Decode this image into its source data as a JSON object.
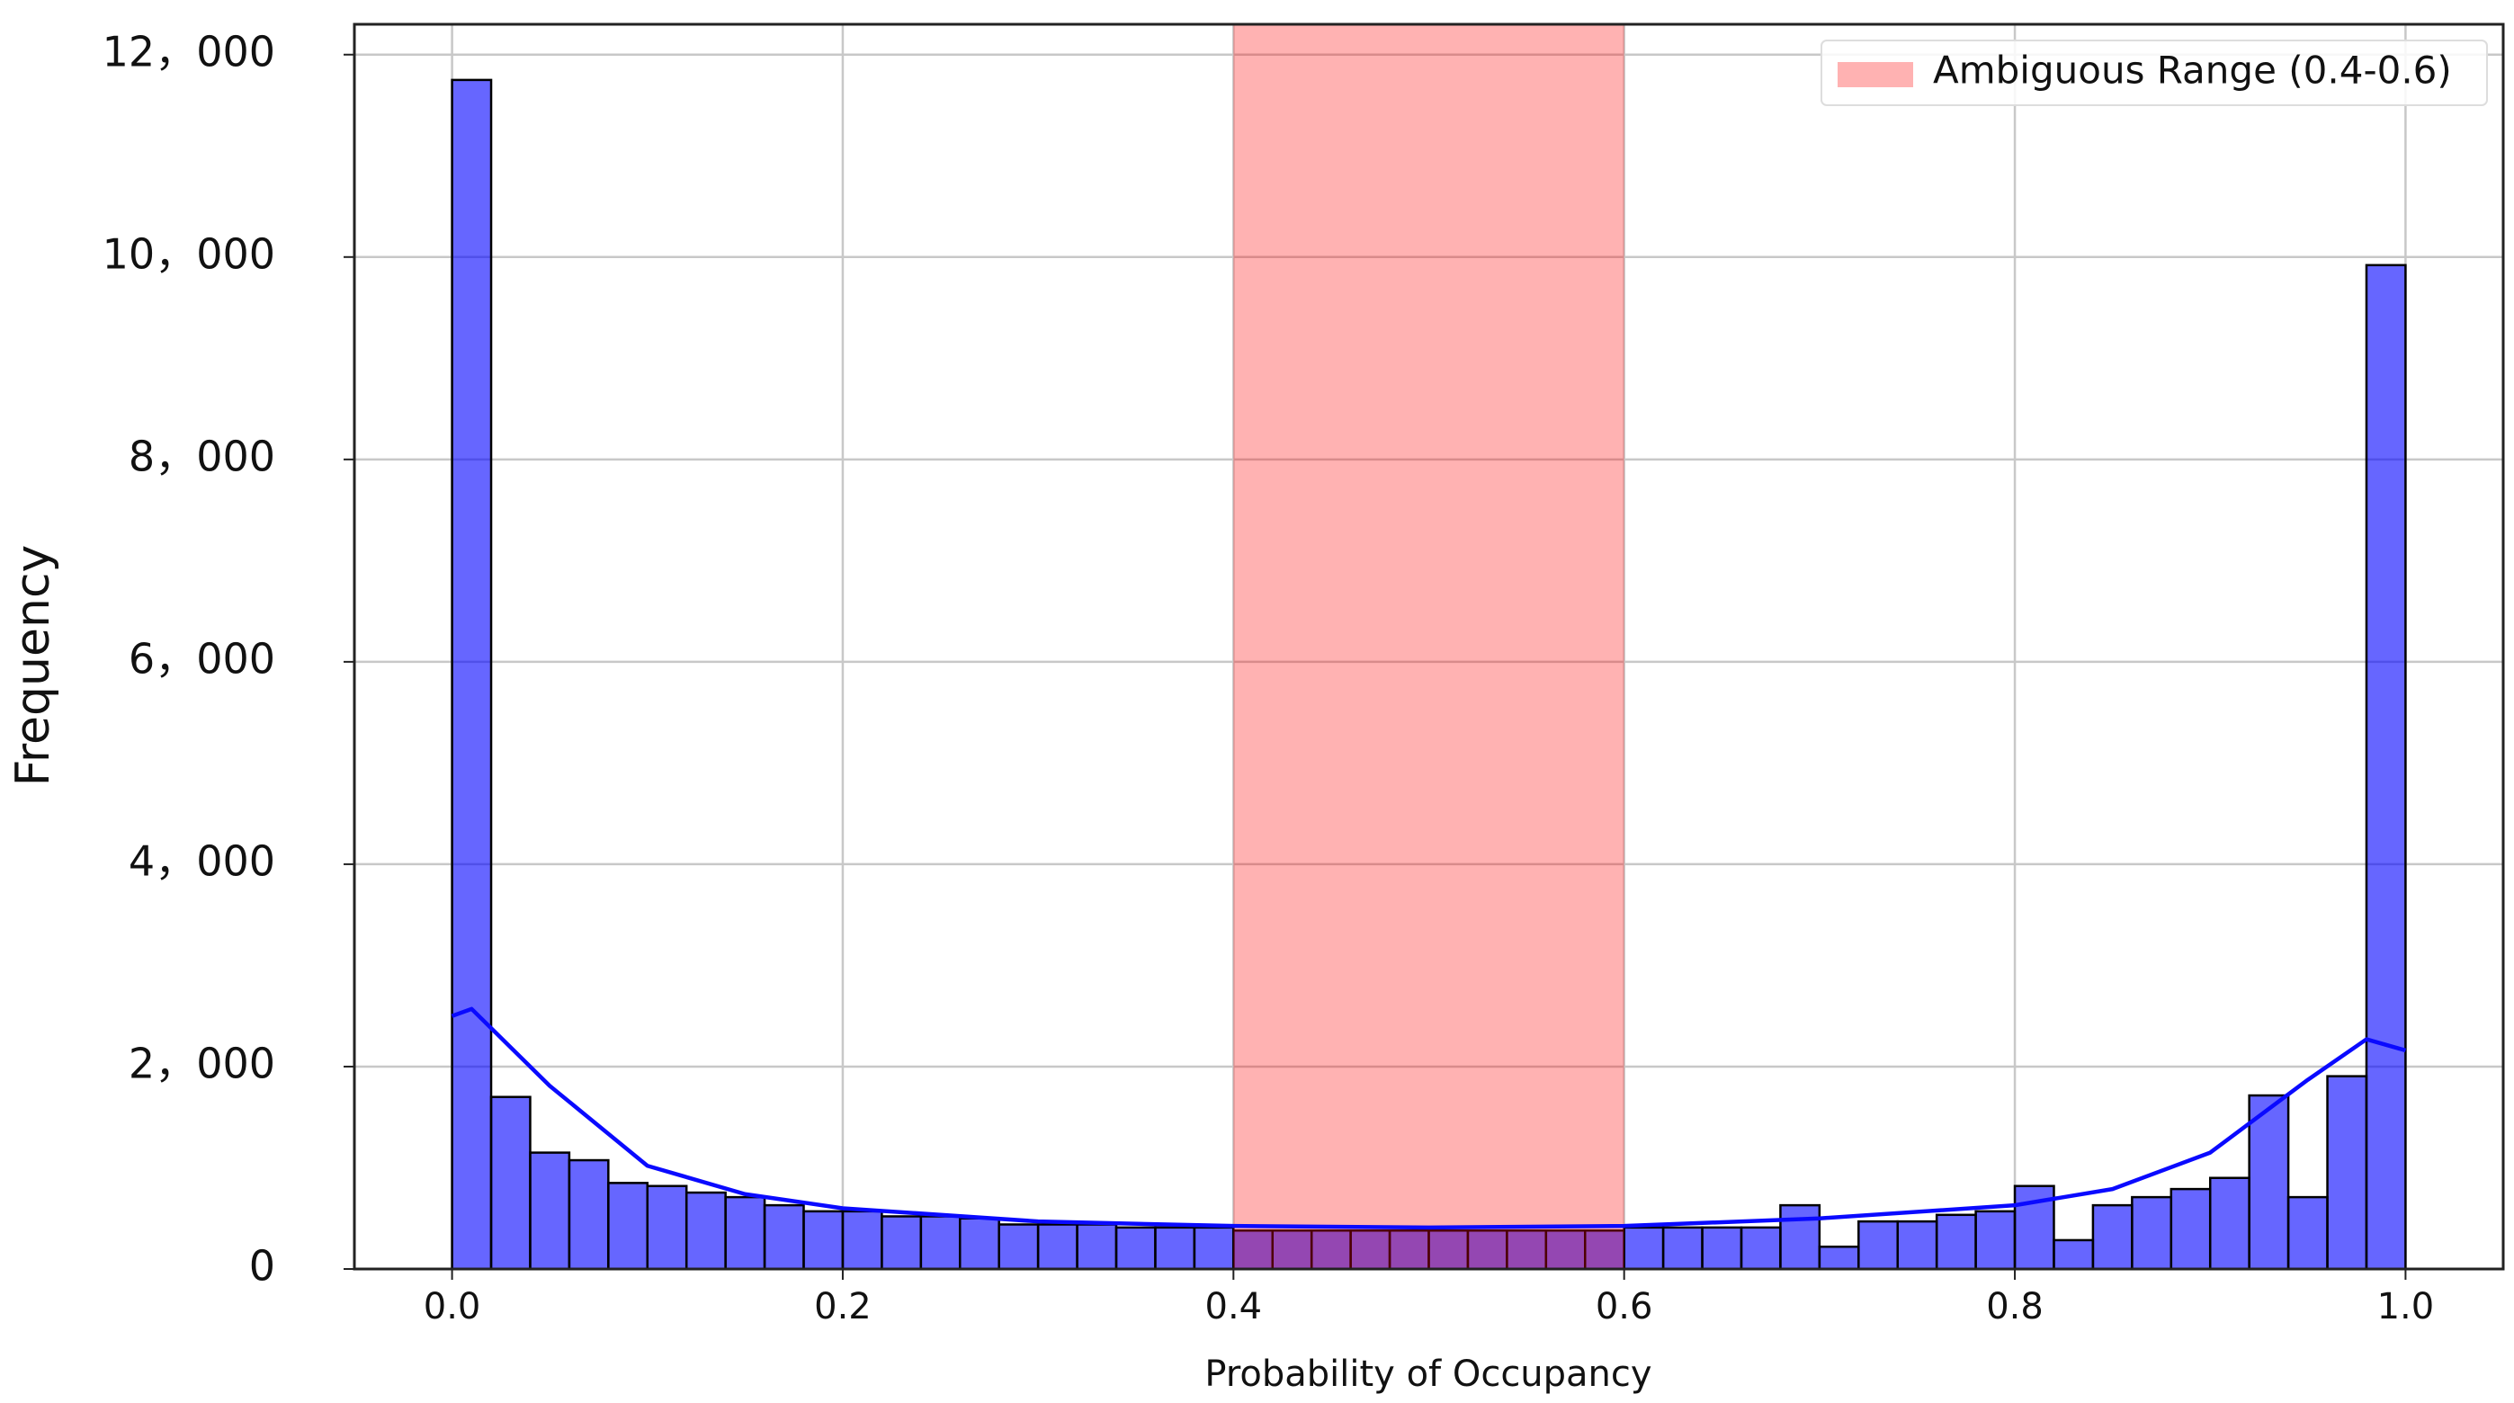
{
  "chart_data": {
    "type": "histogram",
    "x_label": "Probability of Occupancy",
    "y_label": "Frequency",
    "bins": [
      0,
      0.02,
      0.04,
      0.06,
      0.08,
      0.1,
      0.12,
      0.14,
      0.16,
      0.18,
      0.2,
      0.22,
      0.24,
      0.26,
      0.28,
      0.3,
      0.32,
      0.34,
      0.36,
      0.38,
      0.4,
      0.42,
      0.44,
      0.46,
      0.48,
      0.5,
      0.52,
      0.54,
      0.56,
      0.58,
      0.6,
      0.62,
      0.64,
      0.66,
      0.68,
      0.7,
      0.72,
      0.74,
      0.76,
      0.78,
      0.8,
      0.82,
      0.84,
      0.86,
      0.88,
      0.9,
      0.92,
      0.94,
      0.96,
      0.98,
      1.0
    ],
    "counts": [
      11750,
      1700,
      1150,
      1075,
      850,
      820,
      755,
      710,
      630,
      570,
      570,
      520,
      520,
      500,
      440,
      440,
      440,
      410,
      410,
      410,
      380,
      380,
      380,
      380,
      380,
      380,
      380,
      380,
      380,
      380,
      410,
      410,
      410,
      410,
      630,
      220,
      470,
      470,
      535,
      570,
      820,
      285,
      630,
      710,
      790,
      900,
      1715,
      710,
      1905,
      9920
    ],
    "color": "#0000ff",
    "alpha": 0.6,
    "kde": {
      "x": [
        0.0,
        0.01,
        0.05,
        0.1,
        0.15,
        0.2,
        0.3,
        0.4,
        0.5,
        0.6,
        0.7,
        0.8,
        0.85,
        0.9,
        0.95,
        0.98,
        1.0
      ],
      "values": [
        2500,
        2570,
        1810,
        1020,
        740,
        600,
        470,
        425,
        410,
        425,
        500,
        630,
        790,
        1150,
        1870,
        2270,
        2160
      ],
      "color": "#0a0aff"
    },
    "span": {
      "name": "Ambiguous Range (0.4-0.6)",
      "range": [
        0.4,
        0.6
      ],
      "color": "#ff0000",
      "alpha": 0.3
    },
    "xlim": [
      -0.05,
      1.05
    ],
    "ylim": [
      0,
      12300
    ],
    "xticks": [
      {
        "value": 0,
        "label": "0.0"
      },
      0.2,
      0.4,
      0.6,
      0.8,
      {
        "value": 1,
        "label": "1.0"
      }
    ],
    "yticks": [
      0,
      {
        "value": 2000,
        "label": "2，000"
      },
      {
        "value": 4000,
        "label": "4，000"
      },
      {
        "value": 6000,
        "label": "6，000"
      },
      {
        "value": 8000,
        "label": "8，000"
      },
      {
        "value": 10000,
        "label": "10，000"
      },
      {
        "value": 12000,
        "label": "12，000"
      }
    ],
    "grid": true,
    "legend": "upper right"
  }
}
